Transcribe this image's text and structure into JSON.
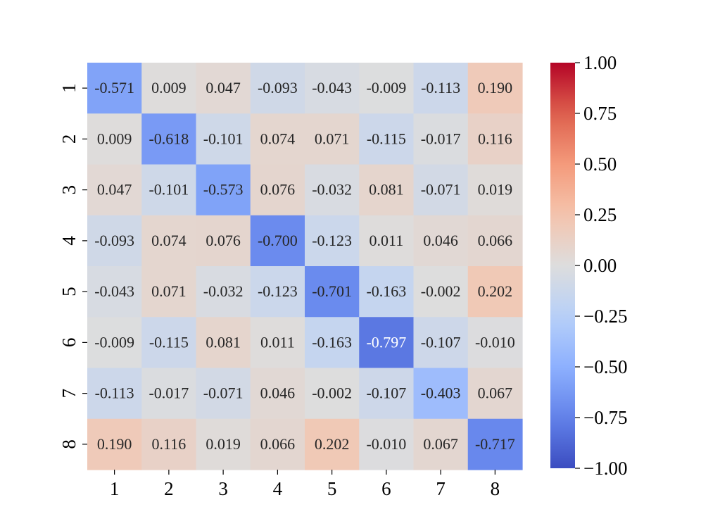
{
  "chart_data": {
    "type": "heatmap",
    "title": "",
    "xlabel": "",
    "ylabel": "",
    "x_categories": [
      "1",
      "2",
      "3",
      "4",
      "5",
      "6",
      "7",
      "8"
    ],
    "y_categories": [
      "1",
      "2",
      "3",
      "4",
      "5",
      "6",
      "7",
      "8"
    ],
    "values": [
      [
        -0.571,
        0.009,
        0.047,
        -0.093,
        -0.043,
        -0.009,
        -0.113,
        0.19
      ],
      [
        0.009,
        -0.618,
        -0.101,
        0.074,
        0.071,
        -0.115,
        -0.017,
        0.116
      ],
      [
        0.047,
        -0.101,
        -0.573,
        0.076,
        -0.032,
        0.081,
        -0.071,
        0.019
      ],
      [
        -0.093,
        0.074,
        0.076,
        -0.7,
        -0.123,
        0.011,
        0.046,
        0.066
      ],
      [
        -0.043,
        0.071,
        -0.032,
        -0.123,
        -0.701,
        -0.163,
        -0.002,
        0.202
      ],
      [
        -0.009,
        -0.115,
        0.081,
        0.011,
        -0.163,
        -0.797,
        -0.107,
        -0.01
      ],
      [
        -0.113,
        -0.017,
        -0.071,
        0.046,
        -0.002,
        -0.107,
        -0.403,
        0.067
      ],
      [
        0.19,
        0.116,
        0.019,
        0.066,
        0.202,
        -0.01,
        0.067,
        -0.717
      ]
    ],
    "value_format": "3 decimals",
    "colormap": "coolwarm",
    "vmin": -1.0,
    "vmax": 1.0,
    "colorbar_ticks": [
      "1.00",
      "0.75",
      "0.50",
      "0.25",
      "0.00",
      "−0.25",
      "−0.50",
      "−0.75",
      "−1.00"
    ],
    "colorbar_tick_values": [
      1.0,
      0.75,
      0.5,
      0.25,
      0.0,
      -0.25,
      -0.5,
      -0.75,
      -1.0
    ],
    "colorbar_placement": "right",
    "y_tick_rotation": "vertical",
    "grid": false
  }
}
